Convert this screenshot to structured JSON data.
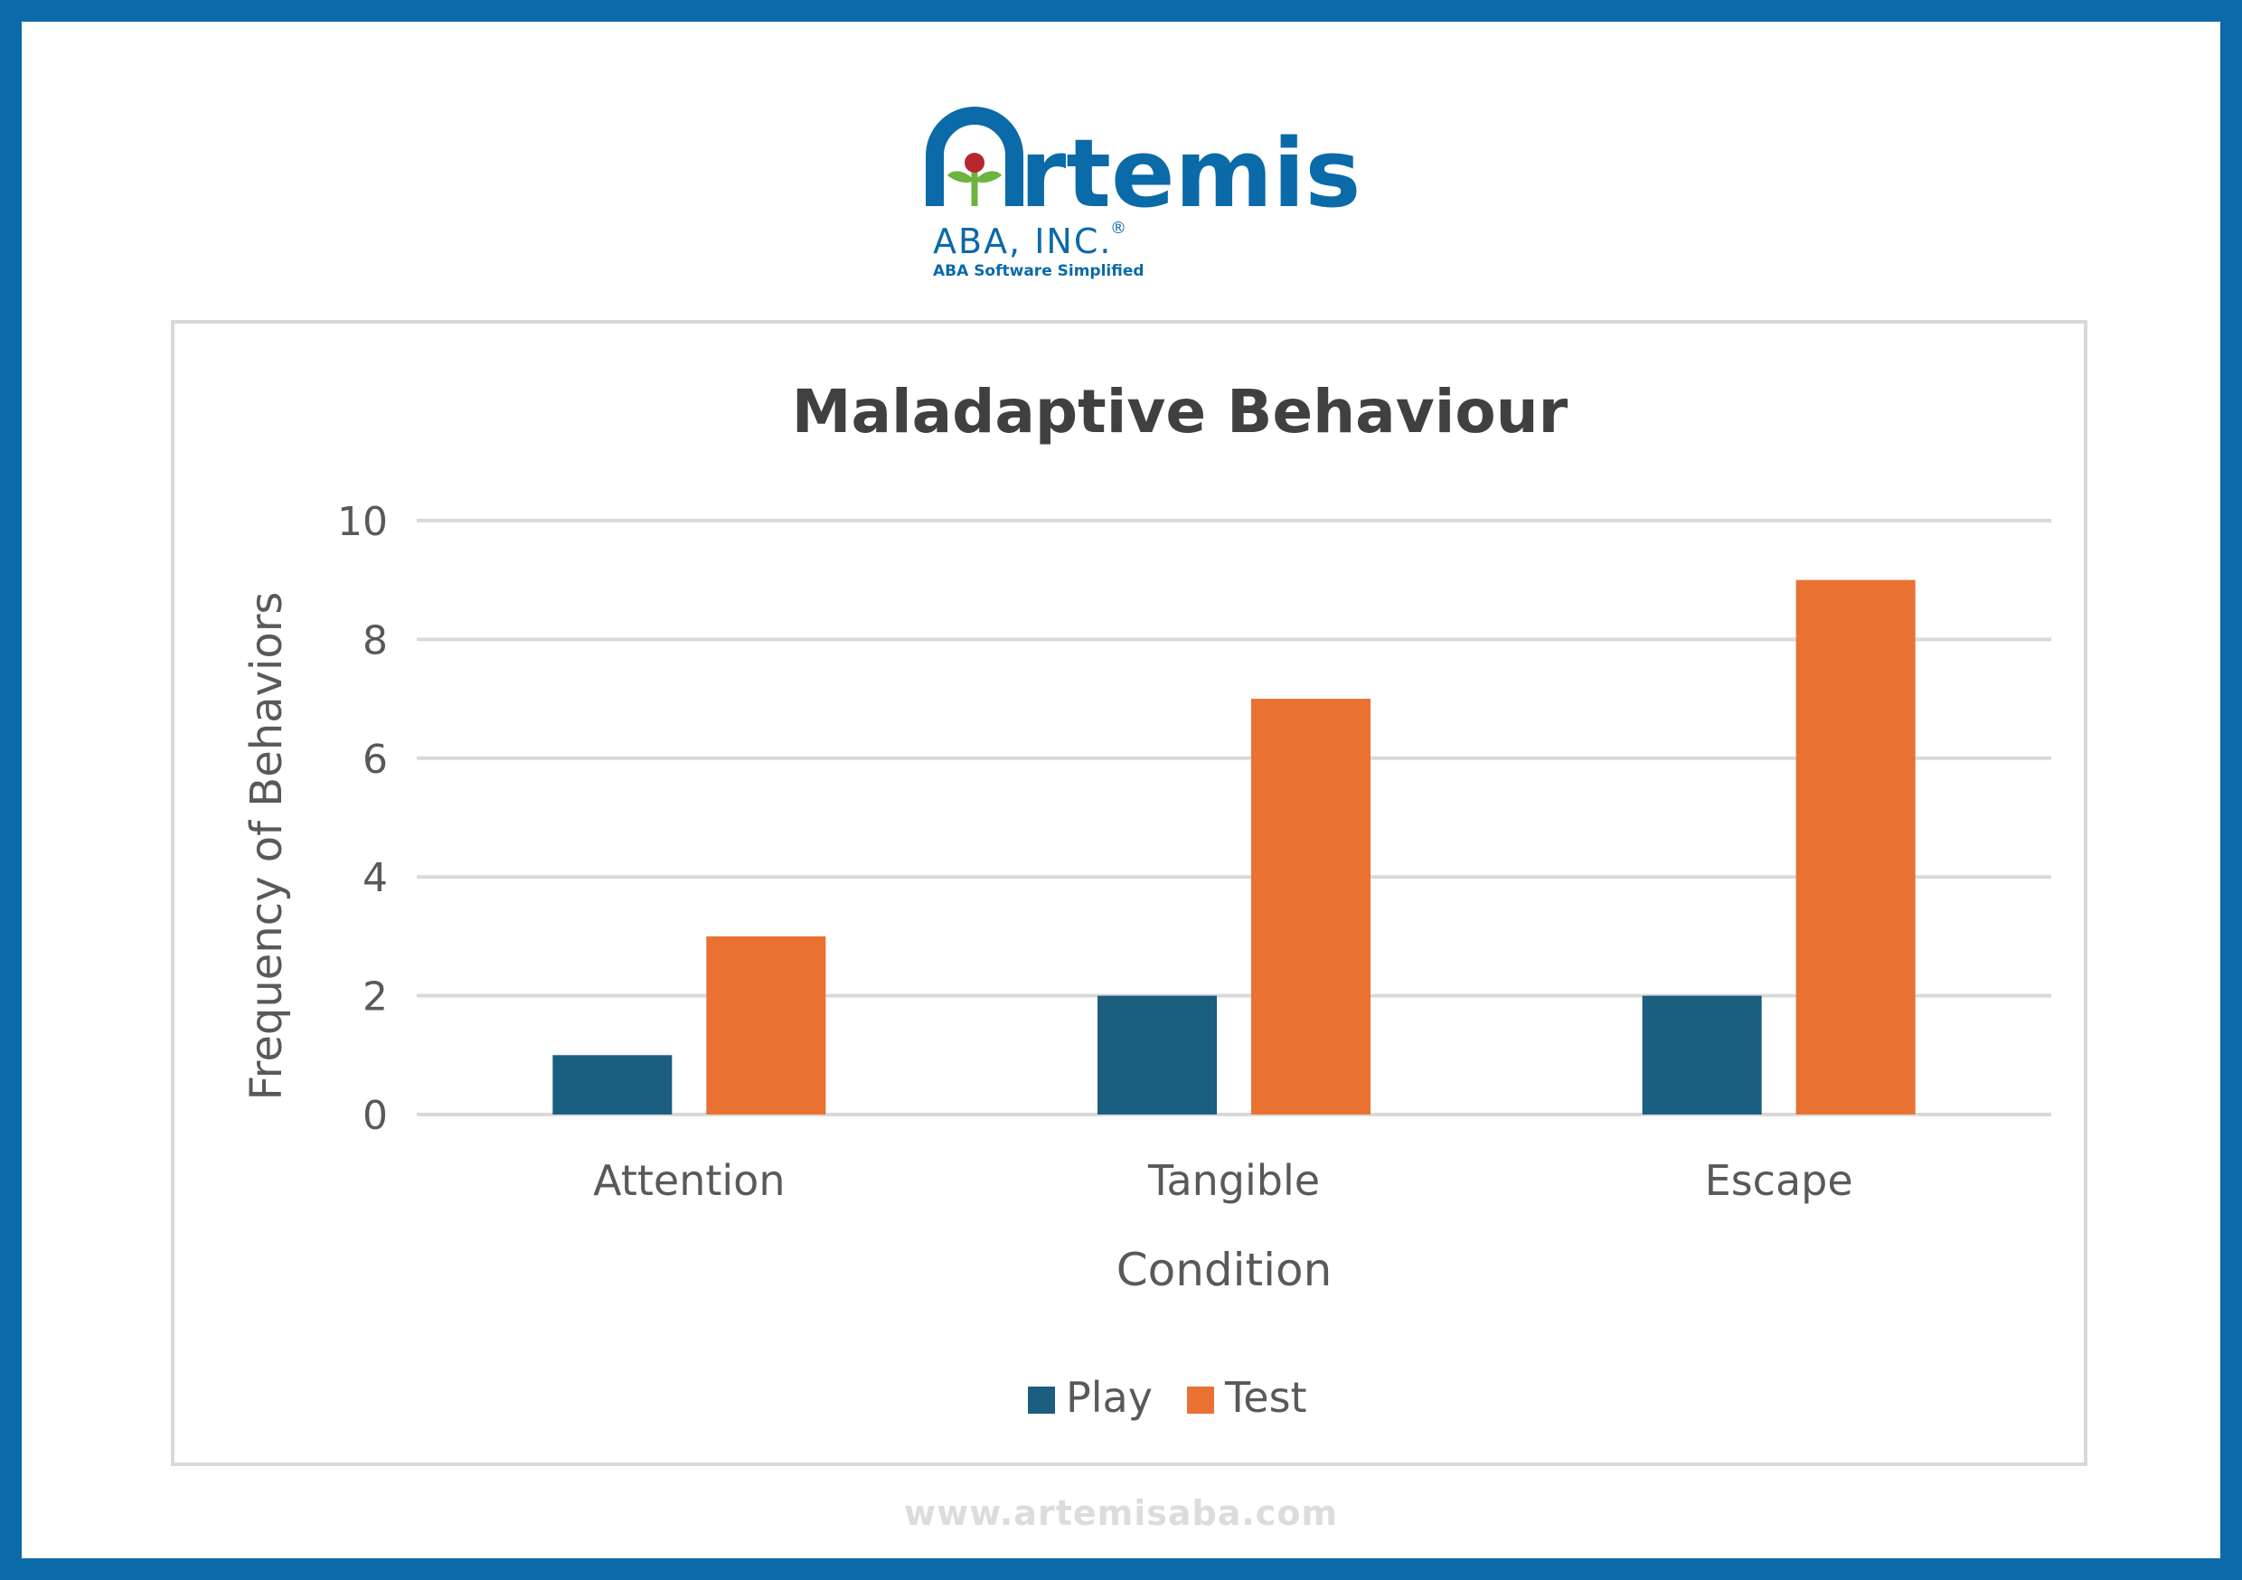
{
  "brand": {
    "name": "rtemis",
    "initial": "A",
    "company": "ABA, INC.",
    "registered": "®",
    "tagline": "ABA Software Simplified",
    "primary_color": "#0b6aa8",
    "leaf_color": "#6cb33f",
    "flower_color": "#b5262f"
  },
  "footer": {
    "url": "www.artemisaba.com"
  },
  "chart_data": {
    "type": "bar",
    "title": "Maladaptive Behaviour",
    "xlabel": "Condition",
    "ylabel": "Frequency of Behaviors",
    "categories": [
      "Attention",
      "Tangible",
      "Escape"
    ],
    "series": [
      {
        "name": "Play",
        "color": "#1b5e80",
        "values": [
          1,
          2,
          2
        ]
      },
      {
        "name": "Test",
        "color": "#e97132",
        "values": [
          3,
          7,
          9
        ]
      }
    ],
    "ylim": [
      0,
      10
    ],
    "yticks": [
      "0",
      "2",
      "4",
      "6",
      "8",
      "10"
    ],
    "grid": true,
    "legend_position": "bottom"
  }
}
